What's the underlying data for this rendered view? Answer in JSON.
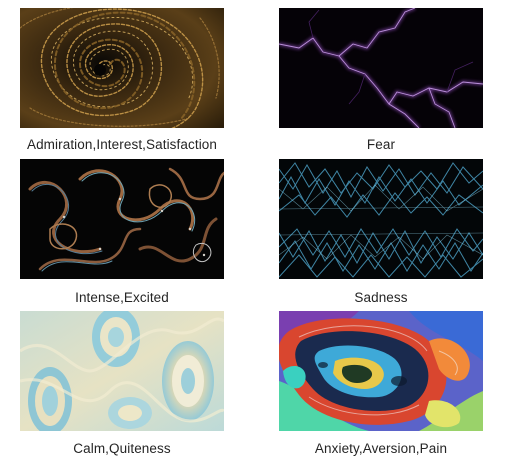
{
  "gallery": {
    "items": [
      {
        "label": "Admiration,Interest,Satisfaction",
        "image": "golden-spiral-swirl"
      },
      {
        "label": "Fear",
        "image": "purple-lightning-on-black"
      },
      {
        "label": "Intense,Excited",
        "image": "tangled-copper-ribbons-on-black"
      },
      {
        "label": "Sadness",
        "image": "blue-zigzag-lines-on-black"
      },
      {
        "label": "Calm,Quiteness",
        "image": "pastel-blue-cream-waves"
      },
      {
        "label": "Anxiety,Aversion,Pain",
        "image": "psychedelic-multicolor-swirl"
      }
    ]
  }
}
